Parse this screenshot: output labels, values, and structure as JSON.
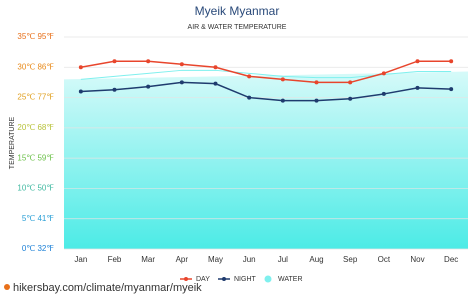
{
  "chart_data": {
    "type": "line",
    "title": "Myeik Myanmar",
    "subtitle": "AIR & WATER TEMPERATURE",
    "y_label": "TEMPERATURE",
    "categories": [
      "Jan",
      "Feb",
      "Mar",
      "Apr",
      "May",
      "Jun",
      "Jul",
      "Aug",
      "Sep",
      "Oct",
      "Nov",
      "Dec"
    ],
    "series": [
      {
        "name": "DAY",
        "color": "#e8452c",
        "kind": "line",
        "values": [
          30,
          31,
          31,
          30.5,
          30,
          28.5,
          28,
          27.5,
          27.5,
          29,
          31,
          31
        ]
      },
      {
        "name": "NIGHT",
        "color": "#1f3b6e",
        "kind": "line",
        "values": [
          26,
          26.3,
          26.8,
          27.5,
          27.3,
          25,
          24.5,
          24.5,
          24.8,
          25.6,
          26.6,
          26.4
        ]
      },
      {
        "name": "WATER",
        "color": "#7ff0ee",
        "kind": "area",
        "values": [
          28,
          28.5,
          29,
          29.5,
          29.5,
          29,
          28.5,
          28.3,
          28.3,
          28.8,
          29.3,
          29.3
        ]
      }
    ],
    "ylim": [
      0,
      35
    ],
    "yticks": [
      {
        "value": 0,
        "label": "0℃ 32℉"
      },
      {
        "value": 5,
        "label": "5℃ 41℉"
      },
      {
        "value": 10,
        "label": "10℃ 50℉"
      },
      {
        "value": 15,
        "label": "15℃ 59℉"
      },
      {
        "value": 20,
        "label": "20℃ 68℉"
      },
      {
        "value": 25,
        "label": "25℃ 77℉"
      },
      {
        "value": 30,
        "label": "30℃ 86℉"
      },
      {
        "value": 35,
        "label": "35℃ 95℉"
      }
    ],
    "ytick_colors": [
      "#1a7fd6",
      "#2a9fd6",
      "#3fb8a0",
      "#6cc04a",
      "#b8c23a",
      "#e0a020",
      "#e88a1a",
      "#e8701a"
    ],
    "grid": true,
    "legend": "bottom",
    "source": "hikersbay.com/climate/myanmar/myeik"
  }
}
